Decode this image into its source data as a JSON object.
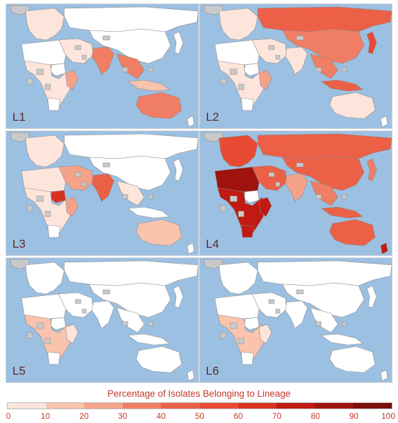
{
  "panels": [
    {
      "id": "L1",
      "label": "L1",
      "shades": {
        "europe": 1,
        "russia": 0,
        "asia": 0,
        "africa": 1,
        "mideast": 1,
        "india": 4,
        "seasia": 4,
        "australia": 4,
        "japan": 0,
        "indonesia": 2,
        "northafrica": 0,
        "eastafrica": 3
      }
    },
    {
      "id": "L2",
      "label": "L2",
      "shades": {
        "europe": 1,
        "russia": 5,
        "asia": 4,
        "africa": 1,
        "mideast": 1,
        "india": 1,
        "seasia": 4,
        "australia": 1,
        "japan": 6,
        "indonesia": 5,
        "northafrica": 0,
        "eastafrica": 3
      }
    },
    {
      "id": "L3",
      "label": "L3",
      "shades": {
        "europe": 1,
        "russia": 0,
        "asia": 0,
        "africa": 1,
        "mideast": 3,
        "india": 5,
        "seasia": 1,
        "australia": 2,
        "japan": 0,
        "indonesia": 0,
        "northafrica": 1,
        "eastafrica": 3,
        "sudan": 7
      }
    },
    {
      "id": "L4",
      "label": "L4",
      "shades": {
        "europe": 6,
        "russia": 5,
        "asia": 5,
        "africa": 8,
        "mideast": 5,
        "india": 3,
        "seasia": 4,
        "australia": 5,
        "japan": 4,
        "indonesia": 5,
        "northafrica": 9,
        "eastafrica": 8,
        "southafrica": 8
      }
    },
    {
      "id": "L5",
      "label": "L5",
      "shades": {
        "europe": 0,
        "russia": 0,
        "asia": 0,
        "africa": 2,
        "mideast": 0,
        "india": 0,
        "seasia": 0,
        "australia": 0,
        "japan": 0,
        "indonesia": 0,
        "northafrica": 0,
        "eastafrica": 1
      }
    },
    {
      "id": "L6",
      "label": "L6",
      "shades": {
        "europe": 0,
        "russia": 0,
        "asia": 0,
        "africa": 2,
        "mideast": 0,
        "india": 0,
        "seasia": 0,
        "australia": 0,
        "japan": 0,
        "indonesia": 0,
        "northafrica": 0,
        "eastafrica": 1
      }
    }
  ],
  "legend": {
    "title": "Percentage of Isolates Belonging to Lineage",
    "ticks": [
      "0",
      "10",
      "20",
      "30",
      "40",
      "50",
      "60",
      "70",
      "80",
      "90",
      "100"
    ],
    "colors": [
      "#fde5dc",
      "#f9c3ad",
      "#f5a28a",
      "#f07e64",
      "#ec6047",
      "#e84a33",
      "#d8321f",
      "#c01a12",
      "#9e130e",
      "#7a0f0b"
    ]
  },
  "colors": {
    "ocean": "#9cc0e2",
    "land_nodata": "#c9c9c9",
    "land_zero": "#ffffff",
    "border": "#8a8a8a"
  }
}
